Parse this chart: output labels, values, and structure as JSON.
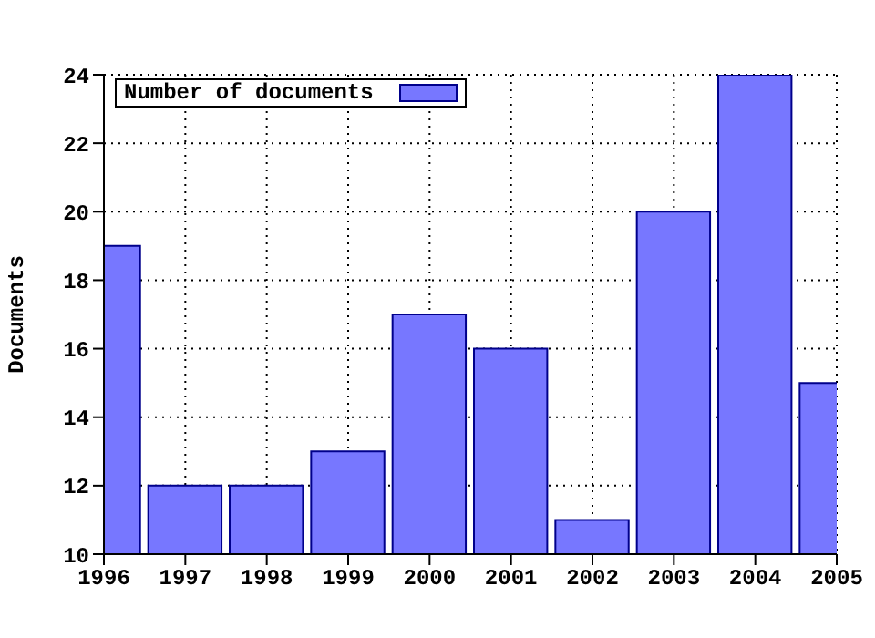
{
  "chart_data": {
    "type": "bar",
    "ylabel": "Documents",
    "x": [
      1996,
      1997,
      1998,
      1999,
      2000,
      2001,
      2002,
      2003,
      2004,
      2005
    ],
    "series": [
      {
        "name": "Number of documents",
        "color": "#7777ff",
        "values": [
          19,
          12,
          12,
          13,
          17,
          16,
          11,
          20,
          24,
          15
        ]
      }
    ],
    "xlim": [
      1996,
      2005
    ],
    "xticks": [
      1996,
      1997,
      1998,
      1999,
      2000,
      2001,
      2002,
      2003,
      2004,
      2005
    ],
    "ylim": [
      10,
      24
    ],
    "yticks": [
      10,
      12,
      14,
      16,
      18,
      20,
      22,
      24
    ],
    "grid": true,
    "legend": "top left"
  }
}
